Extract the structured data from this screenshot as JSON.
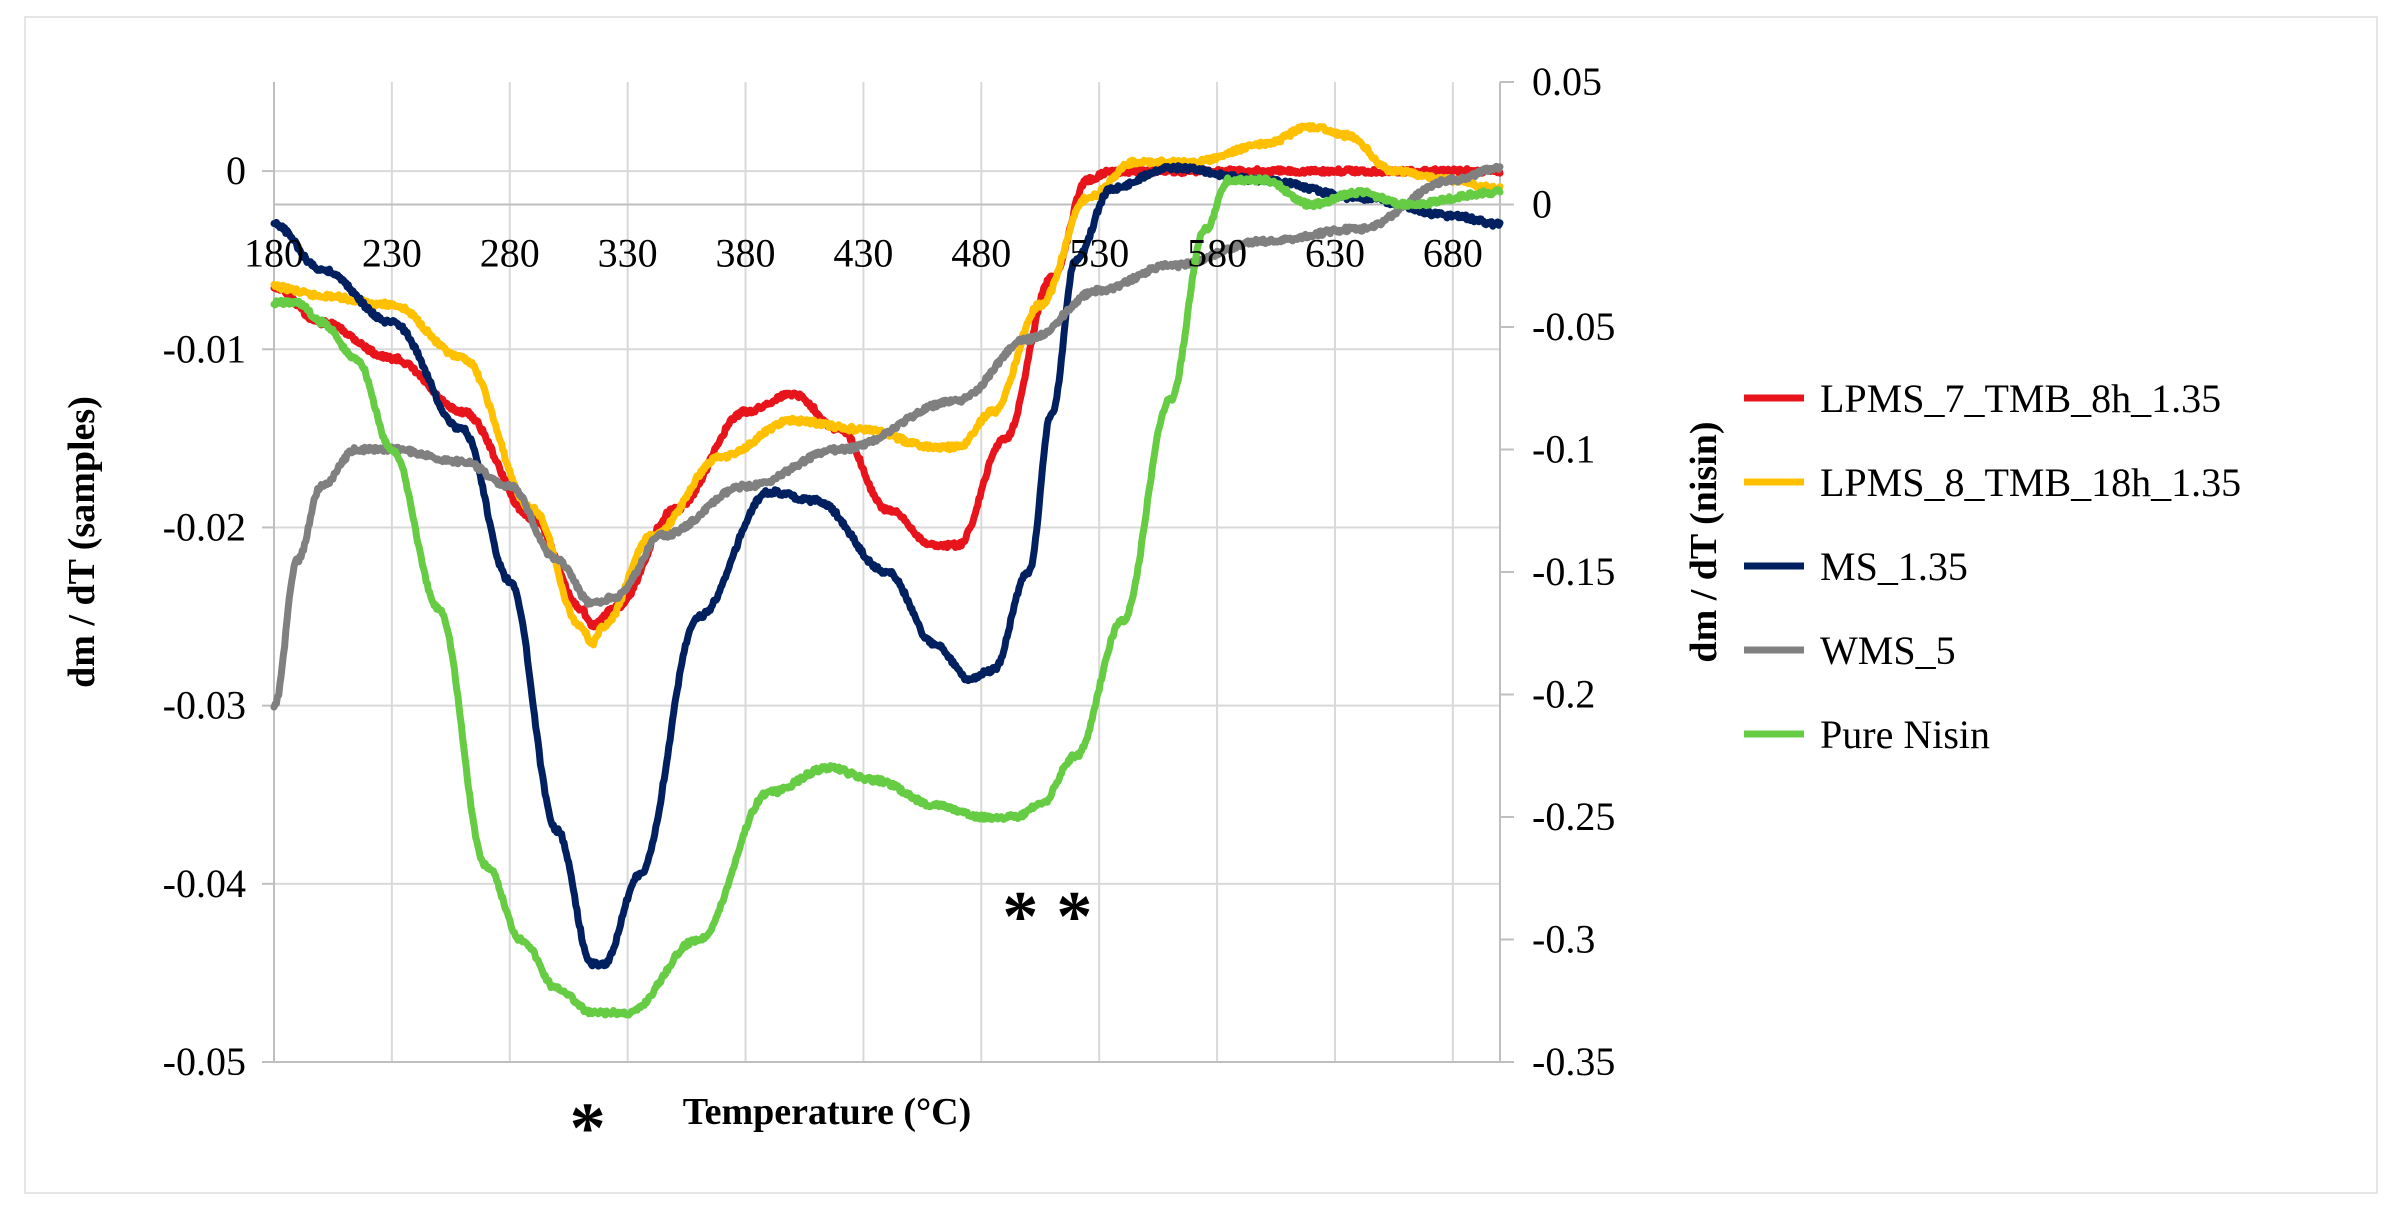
{
  "chart_data": {
    "type": "line",
    "title": "",
    "xlabel": "Temperature (°C)",
    "ylabel_left": "dm / dT (samples)",
    "ylabel_right": "dm / dT (nisin)",
    "xlim": [
      180,
      700
    ],
    "ylim_left": [
      -0.05,
      0.005
    ],
    "ylim_right": [
      -0.35,
      0.05
    ],
    "x_ticks": [
      180,
      230,
      280,
      330,
      380,
      430,
      480,
      530,
      580,
      630,
      680
    ],
    "y_ticks_left": [
      0,
      -0.01,
      -0.02,
      -0.03,
      -0.04,
      -0.05
    ],
    "y_ticks_left_labels": [
      "0",
      "-0.01",
      "-0.02",
      "-0.03",
      "-0.04",
      "-0.05"
    ],
    "y_ticks_right": [
      0.05,
      0,
      -0.05,
      -0.1,
      -0.15,
      -0.2,
      -0.25,
      -0.3,
      -0.35
    ],
    "y_ticks_right_labels": [
      "0.05",
      "0",
      "-0.05",
      "-0.1",
      "-0.15",
      "-0.2",
      "-0.25",
      "-0.3",
      "-0.35"
    ],
    "grid": "horizontal",
    "legend_position": "right",
    "series": [
      {
        "name": "LPMS_7_TMB_8h_1.35",
        "axis": "left",
        "color": "#e8141b",
        "x": [
          180,
          200,
          230,
          260,
          290,
          310,
          315,
          325,
          350,
          380,
          400,
          420,
          440,
          460,
          470,
          490,
          510,
          525,
          535,
          560,
          600,
          640,
          680,
          700
        ],
        "y": [
          -0.0065,
          -0.0085,
          -0.0105,
          -0.0135,
          -0.0195,
          -0.0245,
          -0.0255,
          -0.0245,
          -0.019,
          -0.0135,
          -0.0125,
          -0.0145,
          -0.019,
          -0.021,
          -0.021,
          -0.015,
          -0.006,
          -0.0005,
          0.0,
          0.0,
          0.0,
          0.0,
          0.0,
          0.0
        ]
      },
      {
        "name": "LPMS_8_TMB_18h_1.35",
        "axis": "left",
        "color": "#ffc000",
        "x": [
          180,
          200,
          230,
          260,
          290,
          310,
          315,
          320,
          340,
          370,
          400,
          430,
          460,
          470,
          485,
          505,
          525,
          545,
          570,
          600,
          620,
          635,
          655,
          680,
          700
        ],
        "y": [
          -0.0065,
          -0.007,
          -0.0075,
          -0.0105,
          -0.019,
          -0.0255,
          -0.0265,
          -0.0255,
          -0.0205,
          -0.016,
          -0.014,
          -0.0145,
          -0.0155,
          -0.0155,
          -0.0135,
          -0.0075,
          -0.0015,
          0.0005,
          0.0005,
          0.0015,
          0.0025,
          0.002,
          0.0,
          -0.0005,
          -0.001
        ]
      },
      {
        "name": "MS_1.35",
        "axis": "left",
        "color": "#002060",
        "x": [
          180,
          200,
          230,
          260,
          280,
          300,
          315,
          320,
          335,
          360,
          390,
          410,
          440,
          460,
          475,
          485,
          500,
          510,
          520,
          535,
          560,
          600,
          640,
          680,
          700
        ],
        "y": [
          -0.003,
          -0.0055,
          -0.0085,
          -0.0145,
          -0.023,
          -0.037,
          -0.0445,
          -0.0445,
          -0.0395,
          -0.025,
          -0.018,
          -0.0185,
          -0.0225,
          -0.0265,
          -0.0285,
          -0.028,
          -0.0225,
          -0.0135,
          -0.005,
          -0.001,
          0.0002,
          -0.0005,
          -0.0015,
          -0.0025,
          -0.003
        ]
      },
      {
        "name": "WMS_5",
        "axis": "right",
        "color": "#808080",
        "x": [
          180,
          190,
          200,
          215,
          230,
          260,
          280,
          300,
          315,
          325,
          345,
          380,
          420,
          470,
          500,
          530,
          560,
          600,
          640,
          680,
          700
        ],
        "y": [
          -0.205,
          -0.145,
          -0.115,
          -0.1,
          -0.1,
          -0.105,
          -0.115,
          -0.145,
          -0.163,
          -0.16,
          -0.135,
          -0.115,
          -0.1,
          -0.08,
          -0.055,
          -0.035,
          -0.025,
          -0.015,
          -0.01,
          0.01,
          0.015
        ]
      },
      {
        "name": "Pure Nisin",
        "axis": "right",
        "color": "#66cc44",
        "x": [
          180,
          190,
          200,
          215,
          230,
          250,
          270,
          285,
          300,
          315,
          330,
          360,
          390,
          415,
          435,
          460,
          480,
          495,
          505,
          520,
          540,
          560,
          575,
          585,
          600,
          620,
          640,
          660,
          700
        ],
        "y": [
          -0.04,
          -0.04,
          -0.048,
          -0.063,
          -0.1,
          -0.165,
          -0.27,
          -0.3,
          -0.32,
          -0.33,
          -0.33,
          -0.3,
          -0.24,
          -0.23,
          -0.235,
          -0.245,
          -0.25,
          -0.25,
          -0.245,
          -0.225,
          -0.17,
          -0.08,
          -0.01,
          0.01,
          0.01,
          0.0,
          0.005,
          0.0,
          0.005
        ]
      }
    ],
    "annotations": [
      {
        "text": "*",
        "x": 313,
        "axis": "below"
      },
      {
        "text": "* *",
        "x": 508,
        "axis": "left",
        "y": -0.0415
      }
    ]
  }
}
